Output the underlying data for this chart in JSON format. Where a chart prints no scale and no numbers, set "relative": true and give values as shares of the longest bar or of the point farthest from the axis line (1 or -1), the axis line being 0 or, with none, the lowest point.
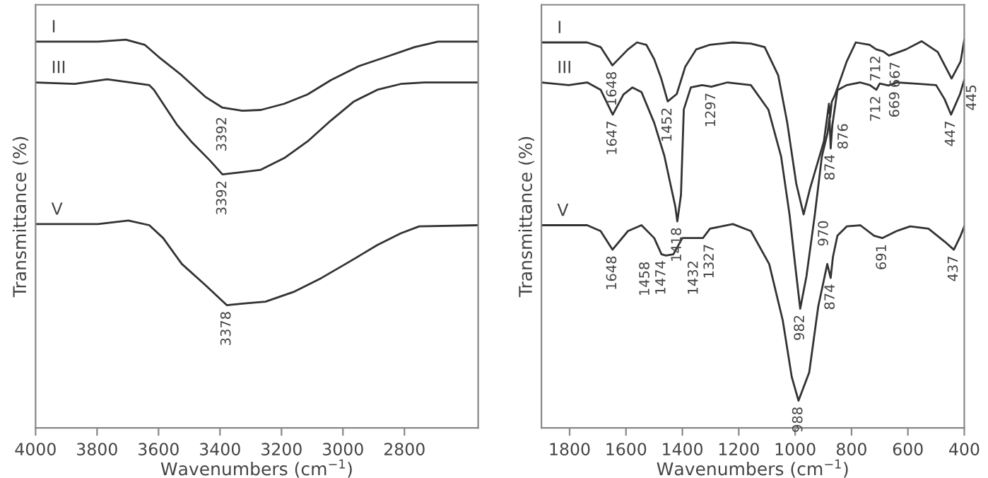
{
  "chart_data": [
    {
      "type": "line",
      "relative": true,
      "xlabel": "Wavenumbers (cm$^{−1}$)",
      "ylabel": "Transmittance (%)",
      "xlim": [
        4000,
        2560
      ],
      "xticks": [
        4000,
        3800,
        3600,
        3400,
        3200,
        3000,
        2800
      ],
      "tick_labels": "x",
      "grid": false,
      "legend": false,
      "marker": "none",
      "line_style": "solid",
      "series": [
        {
          "name": "I",
          "color": "#333333",
          "x": [
            4000,
            3797,
            3706,
            3645,
            3600,
            3524,
            3448,
            3392,
            3327,
            3267,
            3191,
            3115,
            3039,
            2948,
            2858,
            2767,
            2691,
            2560
          ],
          "values": [
            0.995,
            0.995,
            1.0,
            0.987,
            0.956,
            0.908,
            0.853,
            0.825,
            0.817,
            0.819,
            0.835,
            0.859,
            0.896,
            0.932,
            0.956,
            0.981,
            0.995,
            0.995
          ]
        },
        {
          "name": "III",
          "color": "#333333",
          "x": [
            4000,
            3873,
            3767,
            3691,
            3630,
            3615,
            3585,
            3539,
            3494,
            3433,
            3392,
            3327,
            3267,
            3191,
            3115,
            3039,
            2964,
            2888,
            2812,
            2736,
            2560
          ],
          "values": [
            0.89,
            0.886,
            0.898,
            0.89,
            0.883,
            0.871,
            0.835,
            0.78,
            0.738,
            0.689,
            0.653,
            0.659,
            0.665,
            0.695,
            0.738,
            0.792,
            0.841,
            0.871,
            0.886,
            0.89,
            0.89
          ]
        },
        {
          "name": "V",
          "color": "#333333",
          "x": [
            4000,
            3797,
            3698,
            3630,
            3585,
            3524,
            3448,
            3378,
            3327,
            3252,
            3161,
            3070,
            2979,
            2888,
            2812,
            2752,
            2560
          ],
          "values": [
            0.525,
            0.525,
            0.534,
            0.522,
            0.489,
            0.422,
            0.368,
            0.316,
            0.32,
            0.325,
            0.35,
            0.386,
            0.428,
            0.471,
            0.501,
            0.519,
            0.522
          ]
        }
      ],
      "annotations": [
        {
          "text": "3392",
          "x": 3392,
          "y": 0.817
        },
        {
          "text": "3392",
          "x": 3392,
          "y": 0.653
        },
        {
          "text": "3378",
          "x": 3378,
          "y": 0.316
        }
      ]
    },
    {
      "type": "line",
      "relative": true,
      "xlabel": "Wavenumbers (cm$^{−1}$)",
      "ylabel": "Transmittance (%)",
      "xlim": [
        1900,
        400
      ],
      "xticks": [
        1800,
        1600,
        1400,
        1200,
        1000,
        800,
        600,
        400
      ],
      "tick_labels": "x",
      "grid": false,
      "legend": false,
      "marker": "none",
      "line_style": "solid",
      "series": [
        {
          "name": "I",
          "color": "#333333",
          "x": [
            1900,
            1738,
            1690,
            1648,
            1593,
            1561,
            1528,
            1500,
            1475,
            1452,
            1420,
            1390,
            1351,
            1302,
            1221,
            1157,
            1108,
            1060,
            1028,
            996,
            970,
            947,
            898,
            880,
            876,
            870,
            858,
            817,
            785,
            736,
            712,
            688,
            667,
            607,
            551,
            494,
            445,
            413,
            400
          ],
          "values": [
            0.993,
            0.993,
            0.981,
            0.934,
            0.975,
            0.993,
            0.987,
            0.95,
            0.9,
            0.841,
            0.86,
            0.93,
            0.975,
            0.987,
            0.993,
            0.99,
            0.981,
            0.908,
            0.786,
            0.629,
            0.55,
            0.617,
            0.738,
            0.835,
            0.8,
            0.84,
            0.859,
            0.944,
            0.993,
            0.987,
            0.975,
            0.97,
            0.959,
            0.975,
            0.996,
            0.968,
            0.9,
            0.944,
            1.0
          ]
        },
        {
          "name": "III",
          "color": "#333333",
          "x": [
            1900,
            1803,
            1738,
            1690,
            1647,
            1609,
            1577,
            1545,
            1500,
            1464,
            1440,
            1425,
            1418,
            1405,
            1395,
            1370,
            1330,
            1297,
            1240,
            1157,
            1095,
            1050,
            1020,
            1000,
            982,
            960,
            930,
            905,
            885,
            878,
            874,
            868,
            850,
            817,
            770,
            735,
            712,
            700,
            669,
            640,
            560,
            500,
            470,
            447,
            415,
            400
          ],
          "values": [
            0.89,
            0.883,
            0.89,
            0.871,
            0.807,
            0.859,
            0.877,
            0.865,
            0.786,
            0.701,
            0.62,
            0.57,
            0.532,
            0.6,
            0.82,
            0.877,
            0.883,
            0.879,
            0.89,
            0.883,
            0.82,
            0.7,
            0.55,
            0.42,
            0.307,
            0.39,
            0.55,
            0.7,
            0.76,
            0.8,
            0.72,
            0.78,
            0.87,
            0.883,
            0.89,
            0.883,
            0.871,
            0.887,
            0.882,
            0.89,
            0.886,
            0.883,
            0.847,
            0.807,
            0.86,
            0.897
          ]
        },
        {
          "name": "V",
          "color": "#333333",
          "x": [
            1900,
            1738,
            1690,
            1648,
            1593,
            1545,
            1500,
            1474,
            1458,
            1432,
            1400,
            1327,
            1302,
            1221,
            1157,
            1092,
            1044,
            1012,
            988,
            950,
            918,
            886,
            874,
            866,
            850,
            817,
            769,
            720,
            691,
            640,
            592,
            527,
            470,
            437,
            413,
            400
          ],
          "values": [
            0.522,
            0.522,
            0.507,
            0.459,
            0.507,
            0.522,
            0.489,
            0.447,
            0.444,
            0.447,
            0.489,
            0.489,
            0.513,
            0.525,
            0.507,
            0.422,
            0.277,
            0.131,
            0.07,
            0.143,
            0.313,
            0.422,
            0.386,
            0.44,
            0.495,
            0.519,
            0.522,
            0.495,
            0.489,
            0.507,
            0.519,
            0.513,
            0.48,
            0.459,
            0.495,
            0.519
          ]
        }
      ],
      "annotations": [
        {
          "text": "1648",
          "x": 1648,
          "y": 0.934
        },
        {
          "text": "1452",
          "x": 1452,
          "y": 0.841
        },
        {
          "text": "970",
          "x": 970,
          "y": 0.55
        },
        {
          "text": "876",
          "x": 876,
          "y": 0.8
        },
        {
          "text": "712",
          "x": 712,
          "y": 0.975
        },
        {
          "text": "667",
          "x": 667,
          "y": 0.959
        },
        {
          "text": "445",
          "x": 445,
          "y": 0.9
        },
        {
          "text": "1647",
          "x": 1647,
          "y": 0.807
        },
        {
          "text": "1418",
          "x": 1418,
          "y": 0.532
        },
        {
          "text": "1297",
          "x": 1297,
          "y": 0.879
        },
        {
          "text": "982",
          "x": 982,
          "y": 0.307
        },
        {
          "text": "874",
          "x": 874,
          "y": 0.72
        },
        {
          "text": "712",
          "x": 712,
          "y": 0.871
        },
        {
          "text": "669",
          "x": 669,
          "y": 0.882
        },
        {
          "text": "447",
          "x": 447,
          "y": 0.807
        },
        {
          "text": "1648",
          "x": 1648,
          "y": 0.459
        },
        {
          "text": "1474",
          "x": 1474,
          "y": 0.447
        },
        {
          "text": "1458",
          "x": 1458,
          "y": 0.444
        },
        {
          "text": "1432",
          "x": 1432,
          "y": 0.447
        },
        {
          "text": "1327",
          "x": 1327,
          "y": 0.489
        },
        {
          "text": "988",
          "x": 988,
          "y": 0.07
        },
        {
          "text": "874",
          "x": 874,
          "y": 0.386
        },
        {
          "text": "691",
          "x": 691,
          "y": 0.489
        },
        {
          "text": "437",
          "x": 437,
          "y": 0.459
        }
      ]
    }
  ]
}
